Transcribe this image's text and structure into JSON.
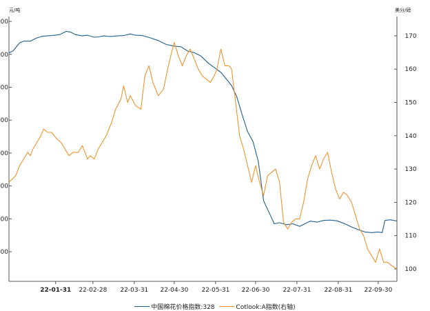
{
  "chart_data": {
    "type": "line",
    "left_axis_unit": "元/吨",
    "right_axis_unit": "美分/磅",
    "left_tick_labels": [
      "00",
      "00",
      "00",
      "00",
      "00",
      "00",
      "00",
      "00"
    ],
    "left_ylim": [
      0,
      7
    ],
    "right_ylim": [
      100,
      175
    ],
    "right_ticks": [
      100,
      110,
      120,
      130,
      140,
      150,
      160,
      170
    ],
    "x_range": [
      "2021-12-27",
      "2022-10-14"
    ],
    "x_ticks": [
      {
        "label": "22-01-31",
        "date": "2022-01-31",
        "bold": true
      },
      {
        "label": "22-02-28",
        "date": "2022-02-28",
        "bold": false
      },
      {
        "label": "22-03-31",
        "date": "2022-03-31",
        "bold": false
      },
      {
        "label": "22-04-30",
        "date": "2022-04-30",
        "bold": false
      },
      {
        "label": "22-05-31",
        "date": "2022-05-31",
        "bold": false
      },
      {
        "label": "22-06-30",
        "date": "2022-06-30",
        "bold": false
      },
      {
        "label": "22-07-31",
        "date": "2022-07-31",
        "bold": false
      },
      {
        "label": "22-08-31",
        "date": "2022-08-31",
        "bold": false
      },
      {
        "label": "22-09-30",
        "date": "2022-09-30",
        "bold": false
      }
    ],
    "series": [
      {
        "name": "中国棉花价格指数:328",
        "axis": "left",
        "color": "#1f5f8b",
        "points": [
          [
            "2021-12-27",
            6.05
          ],
          [
            "2021-12-30",
            6.1
          ],
          [
            "2022-01-04",
            6.35
          ],
          [
            "2022-01-07",
            6.4
          ],
          [
            "2022-01-12",
            6.4
          ],
          [
            "2022-01-17",
            6.5
          ],
          [
            "2022-01-21",
            6.55
          ],
          [
            "2022-01-28",
            6.57
          ],
          [
            "2022-02-03",
            6.6
          ],
          [
            "2022-02-08",
            6.7
          ],
          [
            "2022-02-11",
            6.68
          ],
          [
            "2022-02-15",
            6.6
          ],
          [
            "2022-02-20",
            6.56
          ],
          [
            "2022-02-24",
            6.58
          ],
          [
            "2022-03-01",
            6.52
          ],
          [
            "2022-03-04",
            6.53
          ],
          [
            "2022-03-08",
            6.56
          ],
          [
            "2022-03-13",
            6.54
          ],
          [
            "2022-03-18",
            6.56
          ],
          [
            "2022-03-23",
            6.57
          ],
          [
            "2022-03-28",
            6.62
          ],
          [
            "2022-04-01",
            6.58
          ],
          [
            "2022-04-06",
            6.57
          ],
          [
            "2022-04-12",
            6.5
          ],
          [
            "2022-04-18",
            6.42
          ],
          [
            "2022-04-24",
            6.3
          ],
          [
            "2022-04-30",
            6.25
          ],
          [
            "2022-05-05",
            6.23
          ],
          [
            "2022-05-10",
            6.1
          ],
          [
            "2022-05-15",
            6.05
          ],
          [
            "2022-05-20",
            5.95
          ],
          [
            "2022-05-25",
            5.75
          ],
          [
            "2022-05-30",
            5.6
          ],
          [
            "2022-06-04",
            5.45
          ],
          [
            "2022-06-08",
            5.25
          ],
          [
            "2022-06-12",
            5.05
          ],
          [
            "2022-06-16",
            4.7
          ],
          [
            "2022-06-20",
            4.15
          ],
          [
            "2022-06-24",
            3.65
          ],
          [
            "2022-06-28",
            3.35
          ],
          [
            "2022-07-02",
            2.75
          ],
          [
            "2022-07-06",
            1.55
          ],
          [
            "2022-07-10",
            1.2
          ],
          [
            "2022-07-14",
            0.85
          ],
          [
            "2022-07-18",
            0.88
          ],
          [
            "2022-07-23",
            0.82
          ],
          [
            "2022-07-28",
            0.85
          ],
          [
            "2022-08-02",
            0.77
          ],
          [
            "2022-08-06",
            0.85
          ],
          [
            "2022-08-10",
            0.93
          ],
          [
            "2022-08-15",
            0.9
          ],
          [
            "2022-08-20",
            0.95
          ],
          [
            "2022-08-25",
            0.96
          ],
          [
            "2022-08-30",
            0.94
          ],
          [
            "2022-09-05",
            0.85
          ],
          [
            "2022-09-10",
            0.75
          ],
          [
            "2022-09-15",
            0.67
          ],
          [
            "2022-09-20",
            0.6
          ],
          [
            "2022-09-25",
            0.58
          ],
          [
            "2022-09-30",
            0.6
          ],
          [
            "2022-10-03",
            0.58
          ],
          [
            "2022-10-05",
            0.95
          ],
          [
            "2022-10-09",
            0.97
          ],
          [
            "2022-10-14",
            0.93
          ]
        ]
      },
      {
        "name": "Cotlook:A指数(右轴)",
        "axis": "right",
        "color": "#f0932b",
        "points": [
          [
            "2021-12-27",
            126
          ],
          [
            "2022-01-01",
            128
          ],
          [
            "2022-01-04",
            131
          ],
          [
            "2022-01-07",
            133
          ],
          [
            "2022-01-10",
            135
          ],
          [
            "2022-01-12",
            134
          ],
          [
            "2022-01-14",
            136
          ],
          [
            "2022-01-17",
            138
          ],
          [
            "2022-01-20",
            140
          ],
          [
            "2022-01-22",
            142
          ],
          [
            "2022-01-25",
            141
          ],
          [
            "2022-01-28",
            141
          ],
          [
            "2022-02-01",
            139
          ],
          [
            "2022-02-04",
            138
          ],
          [
            "2022-02-07",
            136
          ],
          [
            "2022-02-10",
            134
          ],
          [
            "2022-02-13",
            135
          ],
          [
            "2022-02-17",
            135
          ],
          [
            "2022-02-20",
            137
          ],
          [
            "2022-02-22",
            135
          ],
          [
            "2022-02-24",
            133
          ],
          [
            "2022-02-26",
            134
          ],
          [
            "2022-03-01",
            133
          ],
          [
            "2022-03-04",
            136
          ],
          [
            "2022-03-07",
            138
          ],
          [
            "2022-03-10",
            140
          ],
          [
            "2022-03-14",
            144
          ],
          [
            "2022-03-17",
            148
          ],
          [
            "2022-03-21",
            151
          ],
          [
            "2022-03-23",
            155
          ],
          [
            "2022-03-26",
            150
          ],
          [
            "2022-03-28",
            152
          ],
          [
            "2022-04-01",
            149
          ],
          [
            "2022-04-05",
            148
          ],
          [
            "2022-04-08",
            158
          ],
          [
            "2022-04-11",
            161
          ],
          [
            "2022-04-14",
            156
          ],
          [
            "2022-04-18",
            152
          ],
          [
            "2022-04-22",
            154
          ],
          [
            "2022-04-25",
            160
          ],
          [
            "2022-04-28",
            165
          ],
          [
            "2022-04-30",
            168
          ],
          [
            "2022-05-03",
            164
          ],
          [
            "2022-05-06",
            161
          ],
          [
            "2022-05-09",
            164
          ],
          [
            "2022-05-12",
            166
          ],
          [
            "2022-05-15",
            163
          ],
          [
            "2022-05-18",
            160
          ],
          [
            "2022-05-21",
            158
          ],
          [
            "2022-05-24",
            157
          ],
          [
            "2022-05-27",
            156
          ],
          [
            "2022-05-30",
            158
          ],
          [
            "2022-06-01",
            160
          ],
          [
            "2022-06-04",
            166
          ],
          [
            "2022-06-07",
            161
          ],
          [
            "2022-06-10",
            161
          ],
          [
            "2022-06-12",
            160
          ],
          [
            "2022-06-15",
            150
          ],
          [
            "2022-06-18",
            140
          ],
          [
            "2022-06-21",
            136
          ],
          [
            "2022-06-24",
            131
          ],
          [
            "2022-06-27",
            126
          ],
          [
            "2022-06-30",
            131
          ],
          [
            "2022-07-03",
            126
          ],
          [
            "2022-07-06",
            122
          ],
          [
            "2022-07-09",
            128
          ],
          [
            "2022-07-12",
            129
          ],
          [
            "2022-07-15",
            130
          ],
          [
            "2022-07-18",
            126
          ],
          [
            "2022-07-21",
            114
          ],
          [
            "2022-07-24",
            112
          ],
          [
            "2022-07-27",
            114
          ],
          [
            "2022-07-30",
            115
          ],
          [
            "2022-08-02",
            115
          ],
          [
            "2022-08-05",
            120
          ],
          [
            "2022-08-08",
            127
          ],
          [
            "2022-08-11",
            131
          ],
          [
            "2022-08-14",
            134
          ],
          [
            "2022-08-17",
            130
          ],
          [
            "2022-08-20",
            133
          ],
          [
            "2022-08-23",
            135
          ],
          [
            "2022-08-26",
            129
          ],
          [
            "2022-08-29",
            124
          ],
          [
            "2022-09-01",
            121
          ],
          [
            "2022-09-04",
            123
          ],
          [
            "2022-09-07",
            122
          ],
          [
            "2022-09-10",
            120
          ],
          [
            "2022-09-13",
            116
          ],
          [
            "2022-09-16",
            112
          ],
          [
            "2022-09-19",
            110
          ],
          [
            "2022-09-22",
            106
          ],
          [
            "2022-09-25",
            104
          ],
          [
            "2022-09-28",
            102
          ],
          [
            "2022-10-01",
            106
          ],
          [
            "2022-10-04",
            102
          ],
          [
            "2022-10-07",
            102
          ],
          [
            "2022-10-10",
            101
          ],
          [
            "2022-10-14",
            100
          ]
        ]
      }
    ]
  }
}
